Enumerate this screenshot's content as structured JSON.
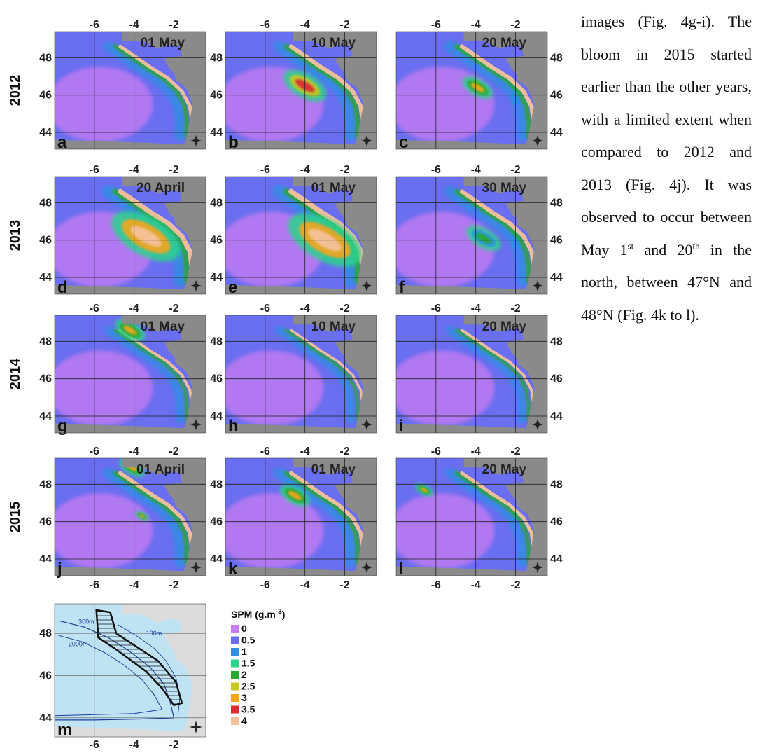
{
  "figure": {
    "years": [
      "2012",
      "2013",
      "2014",
      "2015"
    ],
    "rows": [
      {
        "year": "2012",
        "maps": [
          {
            "letter": "a",
            "date": "01 May",
            "intensity": 0.8,
            "blooms": []
          },
          {
            "letter": "b",
            "date": "10 May",
            "intensity": 1.0,
            "blooms": [
              {
                "x": -4.0,
                "y": 46.5,
                "r": 1.0,
                "level": 3.5
              }
            ]
          },
          {
            "letter": "c",
            "date": "20 May",
            "intensity": 1.0,
            "blooms": [
              {
                "x": -3.9,
                "y": 46.4,
                "r": 0.7,
                "level": 3.2
              }
            ]
          }
        ]
      },
      {
        "year": "2013",
        "maps": [
          {
            "letter": "d",
            "date": "20 April",
            "intensity": 1.2,
            "blooms": [
              {
                "x": -3.4,
                "y": 46.2,
                "r": 1.6,
                "level": 3.8
              }
            ]
          },
          {
            "letter": "e",
            "date": "01 May",
            "intensity": 1.3,
            "blooms": [
              {
                "x": -3.0,
                "y": 46.0,
                "r": 1.7,
                "level": 4.0
              }
            ]
          },
          {
            "letter": "f",
            "date": "30 May",
            "intensity": 1.0,
            "blooms": [
              {
                "x": -3.6,
                "y": 46.1,
                "r": 0.8,
                "level": 2.2
              }
            ]
          }
        ]
      },
      {
        "year": "2014",
        "maps": [
          {
            "letter": "g",
            "date": "01 May",
            "intensity": 0.6,
            "blooms": [
              {
                "x": -4.2,
                "y": 48.6,
                "r": 0.7,
                "level": 3.0
              }
            ]
          },
          {
            "letter": "h",
            "date": "10 May",
            "intensity": 0.5,
            "blooms": []
          },
          {
            "letter": "i",
            "date": "20 May",
            "intensity": 0.6,
            "blooms": []
          }
        ]
      },
      {
        "year": "2015",
        "maps": [
          {
            "letter": "j",
            "date": "01 April",
            "intensity": 0.9,
            "blooms": [
              {
                "x": -4.1,
                "y": 48.9,
                "r": 0.6,
                "level": 3.0
              },
              {
                "x": -3.6,
                "y": 46.3,
                "r": 0.3,
                "level": 2.8
              }
            ]
          },
          {
            "letter": "k",
            "date": "01 May",
            "intensity": 0.9,
            "blooms": [
              {
                "x": -4.5,
                "y": 47.4,
                "r": 0.7,
                "level": 3.0
              }
            ]
          },
          {
            "letter": "l",
            "date": "20 May",
            "intensity": 0.8,
            "blooms": [
              {
                "x": -6.6,
                "y": 47.7,
                "r": 0.4,
                "level": 3.2
              }
            ]
          }
        ]
      }
    ],
    "x_ticks": [
      "-6",
      "-4",
      "-2"
    ],
    "y_ticks": [
      "48",
      "46",
      "44"
    ],
    "bathymetry": {
      "letter": "m",
      "labels": {
        "c300": "300m",
        "c2000": "2000m",
        "c100": "100m"
      }
    },
    "legend": {
      "title": "SPM (g.m",
      "title_sup": "-3",
      "title_end": ")",
      "items": [
        {
          "label": "0",
          "color": "#c97cf2"
        },
        {
          "label": "0.5",
          "color": "#6a6ef0"
        },
        {
          "label": "1",
          "color": "#2f8fe4"
        },
        {
          "label": "1.5",
          "color": "#2ad48a"
        },
        {
          "label": "2",
          "color": "#25a82f"
        },
        {
          "label": "2.5",
          "color": "#c9c81a"
        },
        {
          "label": "3",
          "color": "#f4a51c"
        },
        {
          "label": "3.5",
          "color": "#dd2a34"
        },
        {
          "label": "4",
          "color": "#f5c19a"
        }
      ]
    },
    "colors": {
      "land": "#8a8a8a",
      "grid": "#222222",
      "bathy_sea": "#bfe3f3"
    }
  },
  "paragraph": {
    "p1": "images (Fig. 4g-i). The bloom in 2015 started earlier than the other years, with a limited extent when compared to 2012 and 2013 (Fig. 4j). It was observed to occur between May 1",
    "sup1": "st",
    "p2": " and 20",
    "sup2": "th",
    "p3": " in the north, between 47°N and 48°N (Fig. 4k to l)."
  }
}
